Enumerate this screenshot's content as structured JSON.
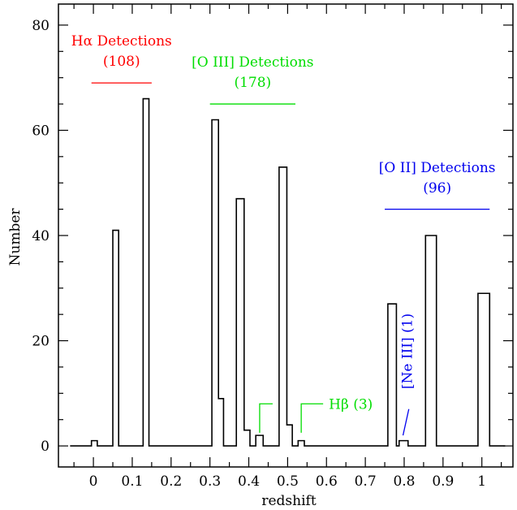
{
  "colors": {
    "halpha": "#ff0000",
    "oiii": "#00dd00",
    "oii": "#0000ee",
    "hbeta": "#00dd00",
    "neiii": "#0000ee",
    "histogram": "#000000"
  },
  "chart_data": {
    "type": "histogram",
    "xlabel": "redshift",
    "ylabel": "Number",
    "xlim": [
      -0.09,
      1.08
    ],
    "ylim": [
      -4,
      84
    ],
    "xticks": [
      "0",
      "0.1",
      "0.2",
      "0.3",
      "0.4",
      "0.5",
      "0.6",
      "0.7",
      "0.8",
      "0.9",
      "1"
    ],
    "xtick_values": [
      0,
      0.1,
      0.2,
      0.3,
      0.4,
      0.5,
      0.6,
      0.7,
      0.8,
      0.9,
      1.0
    ],
    "yticks": [
      "0",
      "20",
      "40",
      "60",
      "80"
    ],
    "ytick_values": [
      0,
      20,
      40,
      60,
      80
    ],
    "bins": [
      {
        "x0": -0.06,
        "x1": -0.005,
        "count": 0
      },
      {
        "x0": -0.005,
        "x1": 0.01,
        "count": 1
      },
      {
        "x0": 0.01,
        "x1": 0.05,
        "count": 0
      },
      {
        "x0": 0.05,
        "x1": 0.065,
        "count": 41
      },
      {
        "x0": 0.065,
        "x1": 0.128,
        "count": 0
      },
      {
        "x0": 0.128,
        "x1": 0.143,
        "count": 66
      },
      {
        "x0": 0.143,
        "x1": 0.305,
        "count": 0
      },
      {
        "x0": 0.305,
        "x1": 0.322,
        "count": 62
      },
      {
        "x0": 0.322,
        "x1": 0.335,
        "count": 9
      },
      {
        "x0": 0.335,
        "x1": 0.368,
        "count": 0
      },
      {
        "x0": 0.368,
        "x1": 0.388,
        "count": 47
      },
      {
        "x0": 0.388,
        "x1": 0.403,
        "count": 3
      },
      {
        "x0": 0.403,
        "x1": 0.418,
        "count": 0
      },
      {
        "x0": 0.418,
        "x1": 0.437,
        "count": 2
      },
      {
        "x0": 0.437,
        "x1": 0.478,
        "count": 0
      },
      {
        "x0": 0.478,
        "x1": 0.498,
        "count": 53
      },
      {
        "x0": 0.498,
        "x1": 0.512,
        "count": 4
      },
      {
        "x0": 0.512,
        "x1": 0.527,
        "count": 0
      },
      {
        "x0": 0.527,
        "x1": 0.543,
        "count": 1
      },
      {
        "x0": 0.543,
        "x1": 0.758,
        "count": 0
      },
      {
        "x0": 0.758,
        "x1": 0.78,
        "count": 27
      },
      {
        "x0": 0.78,
        "x1": 0.787,
        "count": 0
      },
      {
        "x0": 0.787,
        "x1": 0.81,
        "count": 1
      },
      {
        "x0": 0.81,
        "x1": 0.855,
        "count": 0
      },
      {
        "x0": 0.855,
        "x1": 0.883,
        "count": 40
      },
      {
        "x0": 0.883,
        "x1": 0.99,
        "count": 0
      },
      {
        "x0": 0.99,
        "x1": 1.02,
        "count": 29
      },
      {
        "x0": 1.02,
        "x1": 1.06,
        "count": 0
      }
    ],
    "annotations": [
      {
        "id": "halpha",
        "label": "Hα Detections",
        "count_label": "(108)",
        "line_x": [
          -0.005,
          0.15
        ],
        "line_y": 69
      },
      {
        "id": "oiii",
        "label": "[O III] Detections",
        "count_label": "(178)",
        "line_x": [
          0.3,
          0.52
        ],
        "line_y": 65
      },
      {
        "id": "oii",
        "label": "[O II] Detections",
        "count_label": "(96)",
        "line_x": [
          0.75,
          1.02
        ],
        "line_y": 45
      },
      {
        "id": "hbeta",
        "label": "Hβ (3)"
      },
      {
        "id": "neiii",
        "label": "[Ne III] (1)"
      }
    ]
  }
}
